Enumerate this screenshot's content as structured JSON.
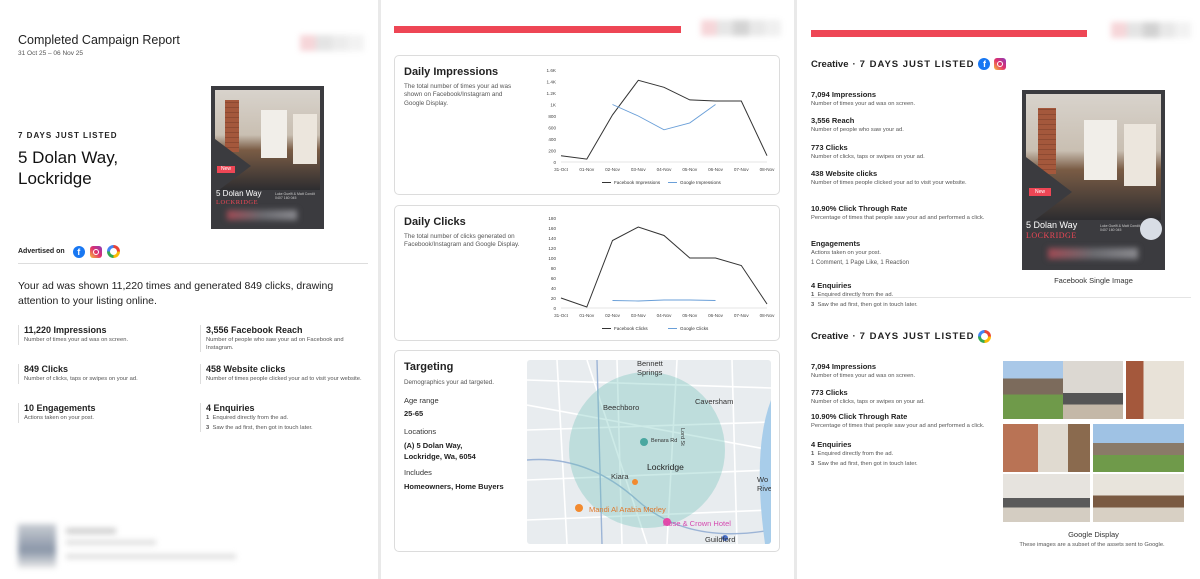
{
  "page1": {
    "title": "Completed Campaign Report",
    "dates": "31 Oct 25 – 06 Nov 25",
    "eyebrow": "7 DAYS JUST LISTED",
    "address_line1": "5 Dolan Way,",
    "address_line2": "Lockridge",
    "advertised_on": "Advertised on",
    "summary": "Your ad was shown 11,220 times and generated 849 clicks, drawing attention to your listing online.",
    "stats": [
      {
        "title": "11,220 Impressions",
        "desc": "Number of times your ad was on screen."
      },
      {
        "title": "3,556 Facebook Reach",
        "desc": "Number of people who saw your ad on Facebook and Instagram."
      },
      {
        "title": "849 Clicks",
        "desc": "Number of clicks, taps or swipes on your ad."
      },
      {
        "title": "458 Website clicks",
        "desc": "Number of times people clicked your ad to visit your website."
      },
      {
        "title": "10 Engagements",
        "desc": "Actions taken on your post."
      },
      {
        "title": "4 Enquiries",
        "desc": ""
      }
    ],
    "enquiries": [
      {
        "n": "1",
        "text": "Enquired directly from the ad."
      },
      {
        "n": "3",
        "text": "Saw the ad first, then got in touch later."
      }
    ],
    "ad": {
      "badge": "New",
      "addr": "5 Dolan Way",
      "suburb": "LOCKRIDGE",
      "agent1": "Luke Guelfi & Matt Condit",
      "agent2": "0407 160 045"
    }
  },
  "page2": {
    "impressions": {
      "title": "Daily Impressions",
      "desc": "The total number of times your ad was shown on Facebook/Instagram and Google Display."
    },
    "clicks": {
      "title": "Daily Clicks",
      "desc": "The total number of clicks generated on Facebook/Instagram and Google Display."
    },
    "targeting": {
      "title": "Targeting",
      "desc": "Demographics your ad targeted.",
      "age_label": "Age range",
      "age_value": "25-65",
      "loc_label": "Locations",
      "loc_line1": "(A) 5 Dolan Way,",
      "loc_line2": "Lockridge, Wa, 6054",
      "inc_label": "Includes",
      "inc_value": "Homeowners, Home Buyers"
    },
    "map": {
      "labels": [
        "Bennett",
        "Springs",
        "Beechboro",
        "Caversham",
        "Benara Rd",
        "Lockridge",
        "Kiara",
        "Mandi Al Arabia Morley",
        "Rose & Crown Hotel",
        "Guildford",
        "Lord St",
        "Wo",
        "Rivers"
      ]
    }
  },
  "chart_data": [
    {
      "type": "line",
      "title": "Daily Impressions",
      "categories": [
        "31-Oct",
        "01-Nov",
        "02-Nov",
        "03-Nov",
        "04-Nov",
        "05-Nov",
        "06-Nov",
        "07-Nov",
        "08-Nov"
      ],
      "yticks": [
        "0",
        "200",
        "400",
        "600",
        "800",
        "1K",
        "1.2K",
        "1.4K",
        "1.6K"
      ],
      "ylim": [
        0,
        1600
      ],
      "series": [
        {
          "name": "Facebook Impressions",
          "color": "#333333",
          "values": [
            110,
            50,
            820,
            1420,
            1300,
            1080,
            1060,
            1060,
            110
          ]
        },
        {
          "name": "Google Impressions",
          "color": "#6a9fd8",
          "values": [
            null,
            null,
            1000,
            800,
            560,
            680,
            1000,
            null,
            null
          ]
        }
      ],
      "legend": "bottom"
    },
    {
      "type": "line",
      "title": "Daily Clicks",
      "categories": [
        "31-Oct",
        "01-Nov",
        "02-Nov",
        "03-Nov",
        "04-Nov",
        "05-Nov",
        "06-Nov",
        "07-Nov",
        "08-Nov"
      ],
      "yticks": [
        "0",
        "20",
        "40",
        "60",
        "80",
        "100",
        "120",
        "140",
        "160",
        "180"
      ],
      "ylim": [
        0,
        180
      ],
      "series": [
        {
          "name": "Facebook Clicks",
          "color": "#333333",
          "values": [
            20,
            2,
            135,
            162,
            145,
            100,
            100,
            85,
            8
          ]
        },
        {
          "name": "Google Clicks",
          "color": "#6a9fd8",
          "values": [
            null,
            null,
            15,
            14,
            16,
            16,
            15,
            null,
            null
          ]
        }
      ],
      "legend": "bottom"
    }
  ],
  "page3": {
    "creative1": {
      "heading": "Creative",
      "sep": "·",
      "name": "7 DAYS JUST LISTED",
      "stats": [
        {
          "title": "7,094 Impressions",
          "desc": "Number of times your ad was on screen."
        },
        {
          "title": "3,556 Reach",
          "desc": "Number of people who saw your ad."
        },
        {
          "title": "773 Clicks",
          "desc": "Number of clicks, taps or swipes on your ad."
        },
        {
          "title": "438 Website clicks",
          "desc": "Number of times people clicked your ad to visit your website."
        },
        {
          "title": "10.90% Click Through Rate",
          "desc": "Percentage of times that people saw your ad and performed a click."
        },
        {
          "title": "Engagements",
          "desc": "Actions taken on your post."
        }
      ],
      "engagements_line": "1 Comment, 1 Page Like, 1 Reaction",
      "enquiries_title": "4 Enquiries",
      "enquiries": [
        {
          "n": "1",
          "text": "Enquired directly from the ad."
        },
        {
          "n": "3",
          "text": "Saw the ad first, then got in touch later."
        }
      ],
      "image_caption": "Facebook Single Image"
    },
    "creative2": {
      "heading": "Creative",
      "sep": "·",
      "name": "7 DAYS JUST LISTED",
      "stats": [
        {
          "title": "7,094 Impressions",
          "desc": "Number of times your ad was on screen."
        },
        {
          "title": "773 Clicks",
          "desc": "Number of clicks, taps or swipes on your ad."
        },
        {
          "title": "10.90% Click Through Rate",
          "desc": "Percentage of times that people saw your ad and performed a click."
        },
        {
          "title": "4 Enquiries",
          "desc": ""
        }
      ],
      "enquiries": [
        {
          "n": "1",
          "text": "Enquired directly from the ad."
        },
        {
          "n": "3",
          "text": "Saw the ad first, then got in touch later."
        }
      ],
      "caption": "Google Display",
      "note": "These images are a subset of the assets sent to Google."
    }
  },
  "colors": {
    "accent": "#ee4655",
    "fb": "#1877f2",
    "google_line": "#6a9fd8"
  }
}
